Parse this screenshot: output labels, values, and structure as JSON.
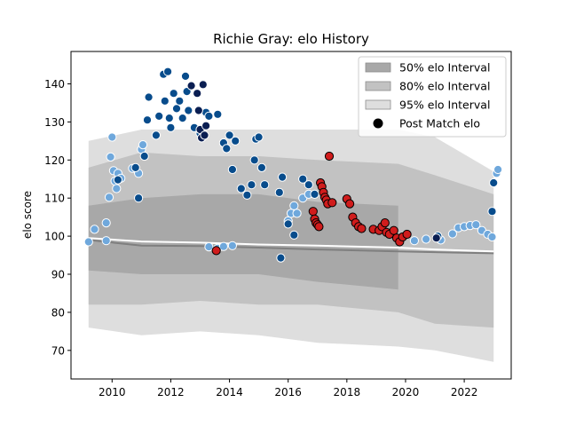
{
  "chart_data": {
    "type": "scatter",
    "title": "Richie Gray: elo History",
    "xlabel": "",
    "ylabel": "elo score",
    "xlim": [
      2008.6,
      2023.6
    ],
    "ylim": [
      62.5,
      148.5
    ],
    "xticks": [
      2010,
      2012,
      2014,
      2016,
      2018,
      2020,
      2022
    ],
    "xtick_labels": [
      "2010",
      "2012",
      "2014",
      "2016",
      "2018",
      "2020",
      "2022"
    ],
    "yticks": [
      70,
      80,
      90,
      100,
      110,
      120,
      130,
      140
    ],
    "ytick_labels": [
      "70",
      "80",
      "90",
      "100",
      "110",
      "120",
      "130",
      "140"
    ],
    "grid": false,
    "legend_position": "top-right",
    "legend": [
      {
        "label": "50% elo Interval",
        "kind": "band50"
      },
      {
        "label": "80% elo Interval",
        "kind": "band80"
      },
      {
        "label": "95% elo Interval",
        "kind": "band95"
      },
      {
        "label": "Post Match elo",
        "kind": "marker"
      }
    ],
    "colors": {
      "band50": "#a8a8a8",
      "band80": "#c2c2c2",
      "band95": "#dedede",
      "light_blue": "#6fa8dc",
      "dark_blue": "#084c8c",
      "navy": "#0a1e52",
      "red": "#d01c1c",
      "median_line": "#7f7f7f",
      "white_line": "#ffffff"
    },
    "intervals": {
      "x": [
        2009.2,
        2011,
        2013,
        2015,
        2017,
        2019.75,
        2021,
        2023
      ],
      "band95_low": [
        76,
        74,
        75,
        74,
        72,
        71,
        70,
        67
      ],
      "band95_high": [
        125,
        128,
        128,
        128,
        128,
        128,
        126,
        117
      ],
      "band80_low": [
        82,
        82,
        83,
        82,
        82,
        80,
        77,
        76
      ],
      "band80_high": [
        118,
        122,
        121,
        121,
        120,
        119,
        116,
        111
      ],
      "band50_low": [
        91,
        90,
        90,
        90,
        88,
        86
      ],
      "band50_high": [
        108,
        110,
        111,
        111,
        109,
        108
      ],
      "band50_end": 2019.75,
      "median": [
        99,
        97.5,
        97.4,
        97,
        96.5,
        96,
        95.8,
        95.5
      ],
      "upper_line": [
        99.5,
        98.6,
        98.3,
        97.8,
        97.5,
        97,
        96.5,
        96
      ]
    },
    "series": [
      {
        "color_key": "light_blue",
        "edge": "#ffffff",
        "points": [
          [
            2009.2,
            98.5
          ],
          [
            2009.4,
            101.8
          ],
          [
            2009.8,
            103.5
          ],
          [
            2009.8,
            98.8
          ],
          [
            2009.9,
            110.2
          ],
          [
            2009.95,
            120.8
          ],
          [
            2010,
            126
          ],
          [
            2010.05,
            117.2
          ],
          [
            2010.1,
            114.5
          ],
          [
            2010.15,
            112.5
          ],
          [
            2010.2,
            116.5
          ],
          [
            2010.3,
            115.2
          ],
          [
            2010.7,
            117.8
          ],
          [
            2010.9,
            116.5
          ],
          [
            2011.0,
            122.8
          ],
          [
            2011.05,
            124
          ],
          [
            2013.3,
            97.2
          ],
          [
            2013.6,
            96.8
          ],
          [
            2013.8,
            97.3
          ],
          [
            2014.1,
            97.5
          ],
          [
            2016.0,
            104
          ],
          [
            2016.1,
            106
          ],
          [
            2016.2,
            108
          ],
          [
            2016.3,
            106
          ],
          [
            2016.5,
            110
          ],
          [
            2016.7,
            111
          ],
          [
            2020.3,
            98.8
          ],
          [
            2020.7,
            99.2
          ],
          [
            2021.2,
            99.0
          ],
          [
            2021.6,
            100.6
          ],
          [
            2021.8,
            102.2
          ],
          [
            2022.0,
            102.5
          ],
          [
            2022.2,
            102.8
          ],
          [
            2022.4,
            103
          ],
          [
            2022.6,
            101.5
          ],
          [
            2022.8,
            100.5
          ],
          [
            2022.95,
            99.8
          ],
          [
            2023.1,
            116.5
          ],
          [
            2023.15,
            117.5
          ]
        ]
      },
      {
        "color_key": "dark_blue",
        "edge": "#ffffff",
        "points": [
          [
            2010.2,
            114.8
          ],
          [
            2010.8,
            118
          ],
          [
            2010.9,
            110
          ],
          [
            2011.1,
            121
          ],
          [
            2011.2,
            130.5
          ],
          [
            2011.25,
            136.5
          ],
          [
            2011.5,
            126.5
          ],
          [
            2011.6,
            131.5
          ],
          [
            2011.75,
            142.5
          ],
          [
            2011.8,
            135.5
          ],
          [
            2011.9,
            143.2
          ],
          [
            2011.95,
            131
          ],
          [
            2012.0,
            128.5
          ],
          [
            2012.1,
            137.5
          ],
          [
            2012.2,
            133.5
          ],
          [
            2012.3,
            135.5
          ],
          [
            2012.4,
            131
          ],
          [
            2012.5,
            142
          ],
          [
            2012.55,
            138
          ],
          [
            2012.6,
            133
          ],
          [
            2012.8,
            128.5
          ],
          [
            2013.0,
            127
          ],
          [
            2013.1,
            140
          ],
          [
            2013.2,
            132.5
          ],
          [
            2013.3,
            131.5
          ],
          [
            2013.6,
            132
          ],
          [
            2013.8,
            124.5
          ],
          [
            2013.9,
            123
          ],
          [
            2014.0,
            126.5
          ],
          [
            2014.1,
            117.5
          ],
          [
            2014.2,
            125
          ],
          [
            2014.4,
            112.5
          ],
          [
            2014.6,
            110.8
          ],
          [
            2014.75,
            113.5
          ],
          [
            2014.85,
            120
          ],
          [
            2014.9,
            125.5
          ],
          [
            2015.0,
            126
          ],
          [
            2015.1,
            118
          ],
          [
            2015.2,
            113.5
          ],
          [
            2015.7,
            111.5
          ],
          [
            2015.75,
            94.3
          ],
          [
            2015.8,
            115.5
          ],
          [
            2016.0,
            103.2
          ],
          [
            2016.2,
            100.3
          ],
          [
            2016.5,
            115
          ],
          [
            2016.7,
            113.5
          ],
          [
            2016.9,
            111
          ],
          [
            2021.1,
            100
          ],
          [
            2022.95,
            106.5
          ],
          [
            2023.0,
            114
          ]
        ]
      },
      {
        "color_key": "navy",
        "edge": "#ffffff",
        "points": [
          [
            2012.7,
            139.5
          ],
          [
            2012.9,
            137.5
          ],
          [
            2012.95,
            133
          ],
          [
            2013.0,
            128
          ],
          [
            2013.05,
            125.8
          ],
          [
            2013.1,
            139.8
          ],
          [
            2013.15,
            126.5
          ],
          [
            2013.2,
            129
          ],
          [
            2021.05,
            99.5
          ]
        ]
      },
      {
        "color_key": "red",
        "edge": "#000000",
        "points": [
          [
            2013.55,
            96.2
          ],
          [
            2016.85,
            106.5
          ],
          [
            2016.9,
            104.5
          ],
          [
            2016.95,
            103.5
          ],
          [
            2017.0,
            103
          ],
          [
            2017.05,
            102.5
          ],
          [
            2017.1,
            114
          ],
          [
            2017.15,
            113
          ],
          [
            2017.2,
            111.5
          ],
          [
            2017.25,
            110.2
          ],
          [
            2017.3,
            109.5
          ],
          [
            2017.35,
            108.5
          ],
          [
            2017.4,
            121
          ],
          [
            2017.5,
            108.8
          ],
          [
            2018.0,
            109.8
          ],
          [
            2018.1,
            108.5
          ],
          [
            2018.2,
            105
          ],
          [
            2018.3,
            103.5
          ],
          [
            2018.4,
            102.5
          ],
          [
            2018.5,
            102
          ],
          [
            2018.9,
            101.8
          ],
          [
            2019.1,
            101.5
          ],
          [
            2019.2,
            102.5
          ],
          [
            2019.3,
            103.5
          ],
          [
            2019.35,
            101
          ],
          [
            2019.45,
            100.5
          ],
          [
            2019.6,
            101.5
          ],
          [
            2019.7,
            99.5
          ],
          [
            2019.8,
            98.5
          ],
          [
            2019.9,
            99.8
          ],
          [
            2020.05,
            100.5
          ]
        ]
      }
    ]
  }
}
